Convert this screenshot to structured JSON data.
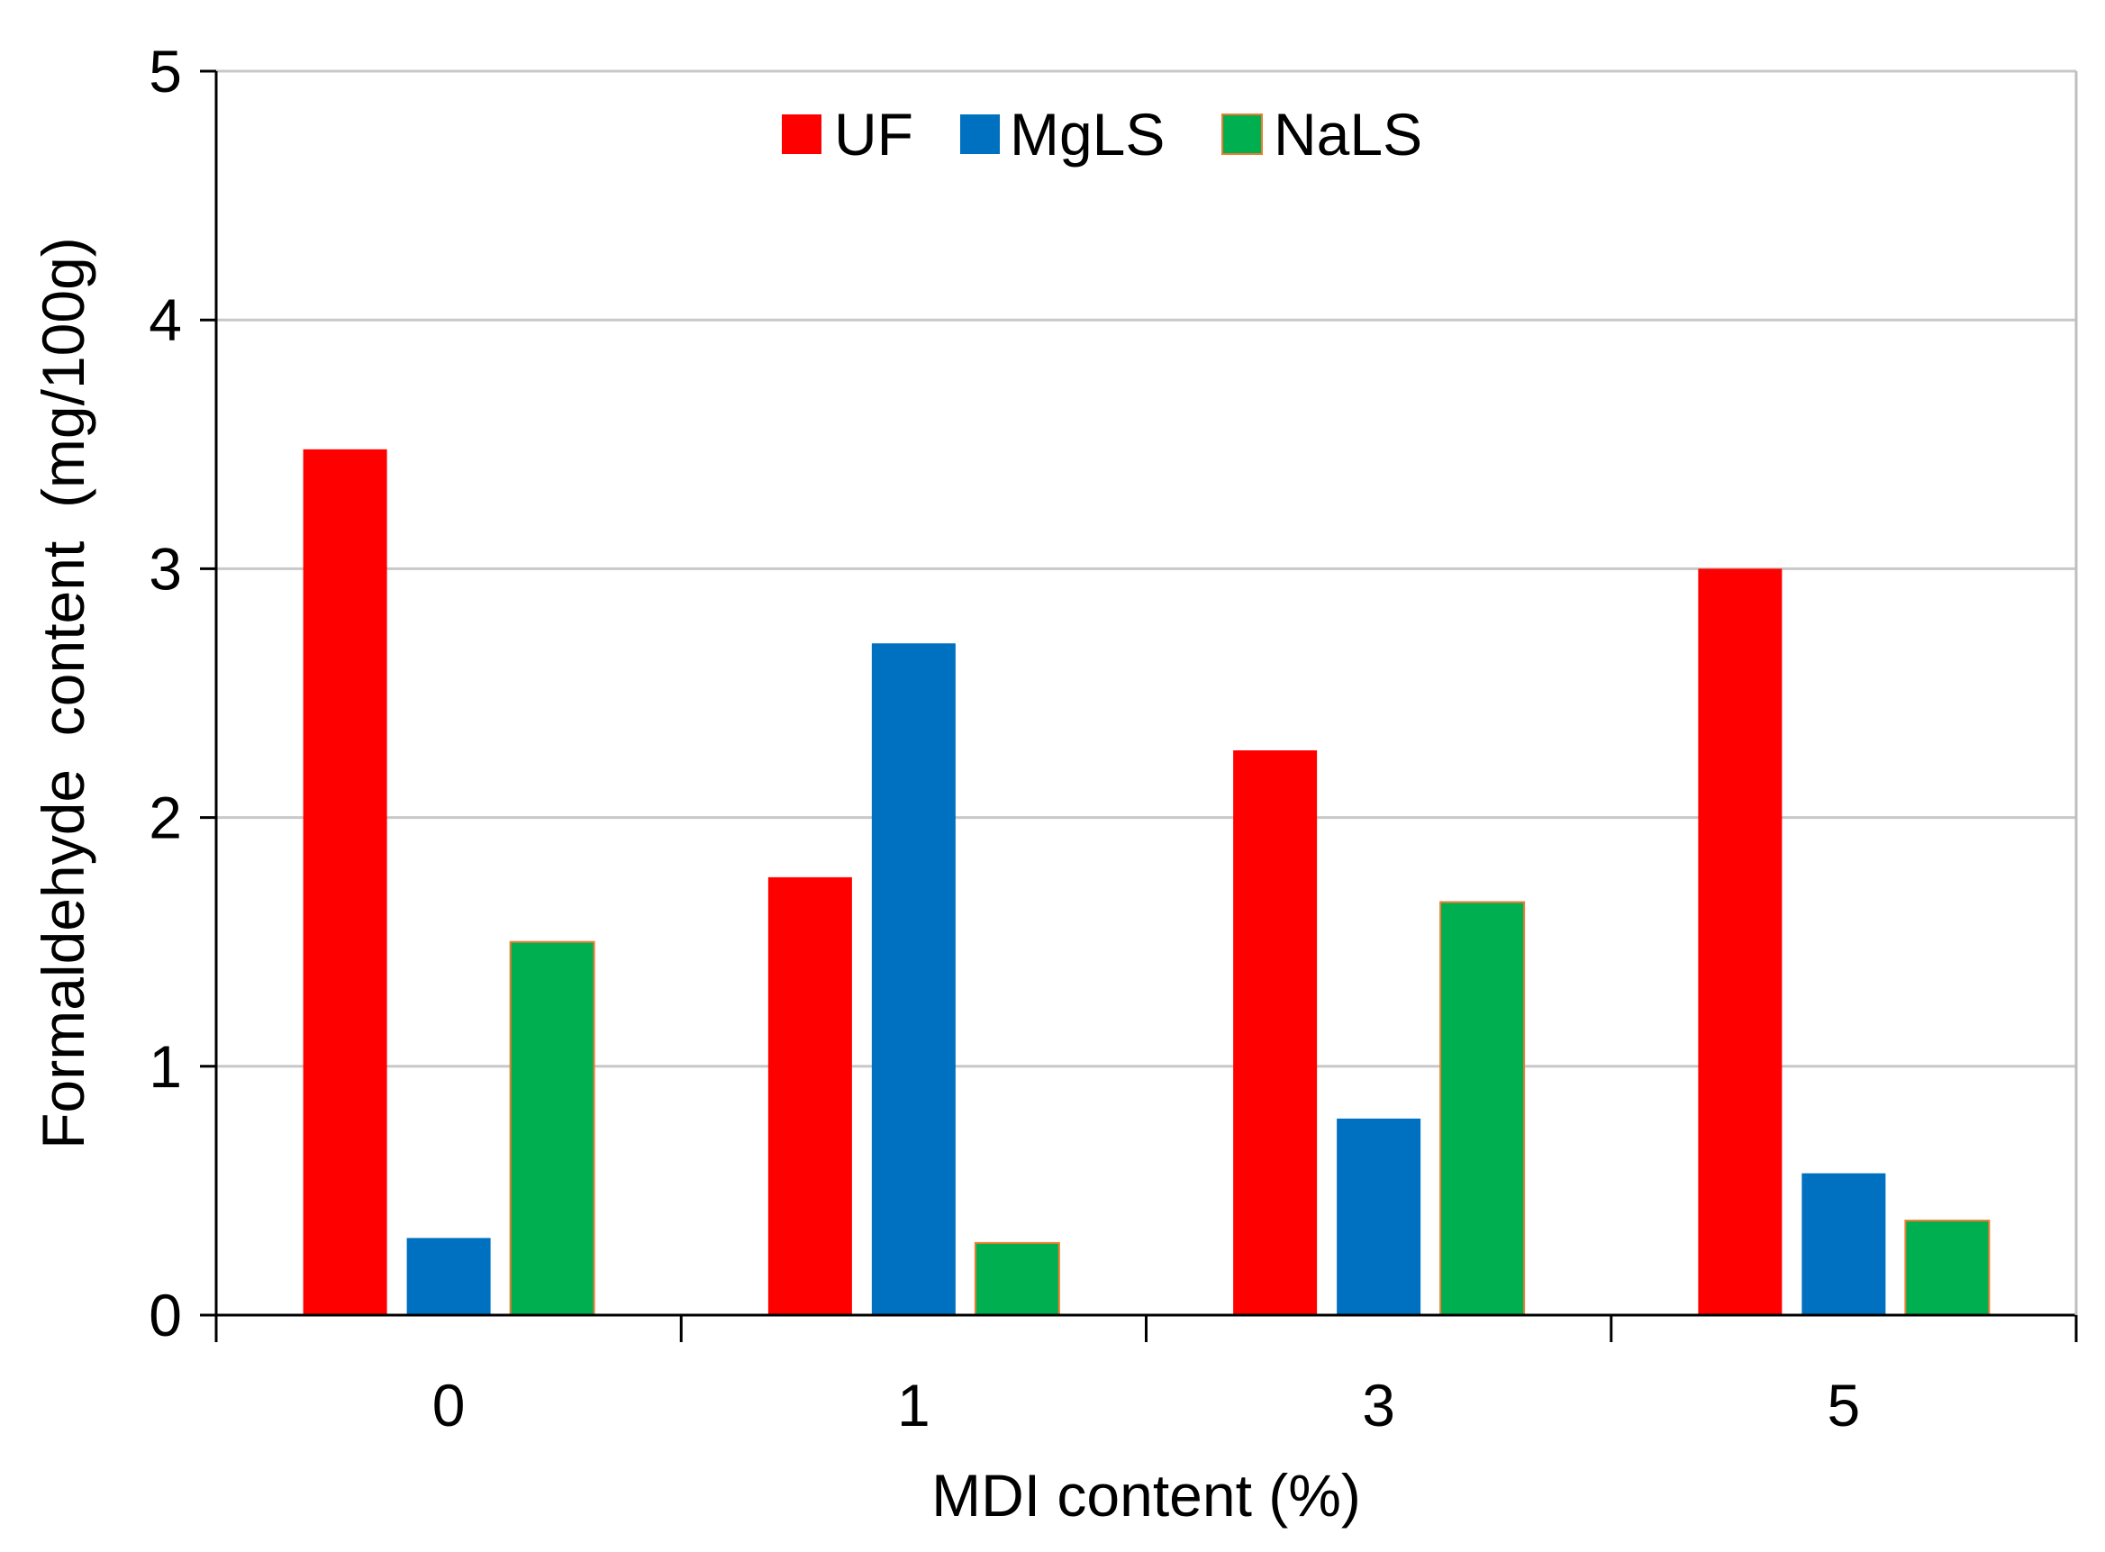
{
  "chart_data": {
    "type": "bar",
    "title": "",
    "xlabel": "MDI content (%)",
    "ylabel": "Formaldehyde  content  (mg/100g)",
    "categories": [
      "0",
      "1",
      "3",
      "5"
    ],
    "series": [
      {
        "name": "UF",
        "color": "#ff0000",
        "values": [
          3.48,
          1.76,
          2.27,
          3.0
        ]
      },
      {
        "name": "MgLS",
        "color": "#0070c0",
        "values": [
          0.31,
          2.7,
          0.79,
          0.57
        ]
      },
      {
        "name": "NaLS",
        "color": "#00b050",
        "values": [
          1.5,
          0.29,
          1.66,
          0.38
        ]
      }
    ],
    "ylim": [
      0,
      5
    ],
    "yticks": [
      0,
      1,
      2,
      3,
      4,
      5
    ],
    "grid": true,
    "legend_position": "top-center"
  }
}
